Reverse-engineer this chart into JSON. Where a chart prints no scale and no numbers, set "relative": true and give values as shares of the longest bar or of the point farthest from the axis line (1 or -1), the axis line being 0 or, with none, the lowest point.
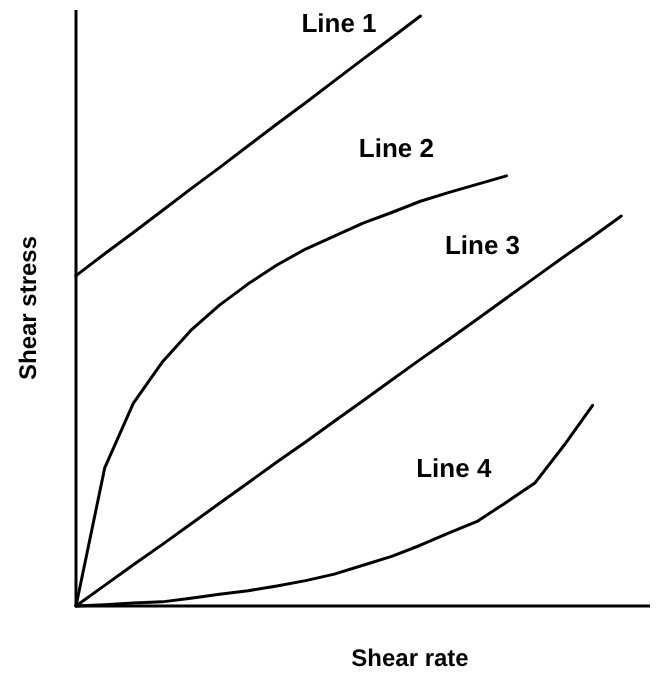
{
  "chart_data": {
    "type": "line",
    "relative": true,
    "xlabel": "Shear rate",
    "ylabel": "Shear stress",
    "marker": "none",
    "line_style": "solid",
    "categories": [
      null,
      null,
      null,
      null,
      null,
      null,
      null,
      null,
      null,
      null,
      null,
      null,
      null,
      null,
      null,
      null,
      null,
      null,
      null,
      null,
      null
    ],
    "series": [
      {
        "name": "Line 1",
        "color": "#000000",
        "values": [
          0.56,
          0.597,
          0.633,
          0.67,
          0.707,
          0.743,
          0.78,
          0.817,
          0.853,
          0.89,
          0.927,
          0.963,
          1,
          null,
          null,
          null,
          null,
          null,
          null,
          null,
          null
        ]
      },
      {
        "name": "Line 2",
        "color": "#000000",
        "values": [
          0,
          0.234,
          0.344,
          0.413,
          0.467,
          0.51,
          0.546,
          0.578,
          0.605,
          0.627,
          0.649,
          0.667,
          0.686,
          0.701,
          0.715,
          0.729,
          null,
          null,
          null,
          null,
          null
        ]
      },
      {
        "name": "Line 3",
        "color": "#000000",
        "values": [
          0,
          0.035,
          0.07,
          0.104,
          0.139,
          0.174,
          0.209,
          0.244,
          0.278,
          0.313,
          0.348,
          0.383,
          0.418,
          0.452,
          0.487,
          0.522,
          0.557,
          0.592,
          0.626,
          0.661,
          null
        ]
      },
      {
        "name": "Line 4",
        "color": "#000000",
        "values": [
          0,
          0.002,
          0.005,
          0.007,
          0.013,
          0.02,
          0.026,
          0.034,
          0.043,
          0.054,
          0.069,
          0.084,
          0.103,
          0.124,
          0.144,
          0.176,
          0.209,
          0.272,
          0.34,
          null,
          null
        ]
      }
    ]
  }
}
